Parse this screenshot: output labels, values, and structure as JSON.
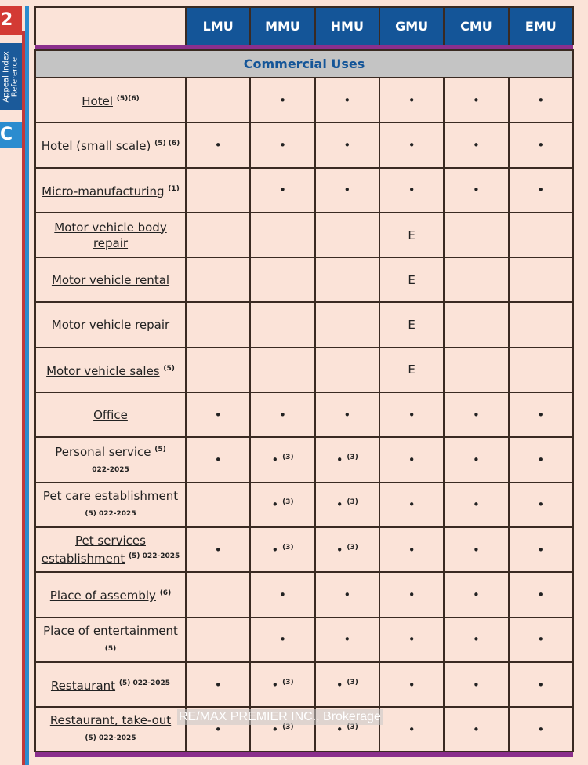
{
  "side": {
    "tab_number": "2",
    "appeal_label": "Appeal Index\nReference",
    "tab_letter": "C"
  },
  "table": {
    "columns": [
      "LMU",
      "MMU",
      "HMU",
      "GMU",
      "CMU",
      "EMU"
    ],
    "section": "Commercial Uses",
    "rows": [
      {
        "use": "Hotel",
        "note": "(5)(6)",
        "note2": "",
        "cells": [
          "",
          "•",
          "•",
          "•",
          "•",
          "•"
        ],
        "cell_notes": [
          "",
          "",
          "",
          "",
          "",
          ""
        ]
      },
      {
        "use": "Hotel (small scale)",
        "note": "(5) (6)",
        "note2": "",
        "cells": [
          "•",
          "•",
          "•",
          "•",
          "•",
          "•"
        ],
        "cell_notes": [
          "",
          "",
          "",
          "",
          "",
          ""
        ]
      },
      {
        "use": "Micro-manufacturing",
        "note": "(1)",
        "note2": "",
        "cells": [
          "",
          "•",
          "•",
          "•",
          "•",
          "•"
        ],
        "cell_notes": [
          "",
          "",
          "",
          "",
          "",
          ""
        ]
      },
      {
        "use": "Motor vehicle body repair",
        "note": "",
        "note2": "",
        "cells": [
          "",
          "",
          "",
          "E",
          "",
          ""
        ],
        "cell_notes": [
          "",
          "",
          "",
          "",
          "",
          ""
        ]
      },
      {
        "use": "Motor vehicle rental",
        "note": "",
        "note2": "",
        "cells": [
          "",
          "",
          "",
          "E",
          "",
          ""
        ],
        "cell_notes": [
          "",
          "",
          "",
          "",
          "",
          ""
        ]
      },
      {
        "use": "Motor vehicle repair",
        "note": "",
        "note2": "",
        "cells": [
          "",
          "",
          "",
          "E",
          "",
          ""
        ],
        "cell_notes": [
          "",
          "",
          "",
          "",
          "",
          ""
        ]
      },
      {
        "use": "Motor vehicle sales",
        "note": "(5)",
        "note2": "",
        "cells": [
          "",
          "",
          "",
          "E",
          "",
          ""
        ],
        "cell_notes": [
          "",
          "",
          "",
          "",
          "",
          ""
        ]
      },
      {
        "use": "Office",
        "note": "",
        "note2": "",
        "cells": [
          "•",
          "•",
          "•",
          "•",
          "•",
          "•"
        ],
        "cell_notes": [
          "",
          "",
          "",
          "",
          "",
          ""
        ]
      },
      {
        "use": "Personal service",
        "note": "(5)",
        "note2": "022-2025",
        "cells": [
          "•",
          "•",
          "•",
          "•",
          "•",
          "•"
        ],
        "cell_notes": [
          "",
          "(3)",
          "(3)",
          "",
          "",
          ""
        ]
      },
      {
        "use": "Pet care establishment",
        "note": "",
        "note2": "(5) 022-2025",
        "cells": [
          "",
          "•",
          "•",
          "•",
          "•",
          "•"
        ],
        "cell_notes": [
          "",
          "(3)",
          "(3)",
          "",
          "",
          ""
        ]
      },
      {
        "use": "Pet services establishment",
        "note": "(5) 022-2025",
        "note2": "",
        "cells": [
          "•",
          "•",
          "•",
          "•",
          "•",
          "•"
        ],
        "cell_notes": [
          "",
          "(3)",
          "(3)",
          "",
          "",
          ""
        ]
      },
      {
        "use": "Place of assembly",
        "note": "(6)",
        "note2": "",
        "cells": [
          "",
          "•",
          "•",
          "•",
          "•",
          "•"
        ],
        "cell_notes": [
          "",
          "",
          "",
          "",
          "",
          ""
        ]
      },
      {
        "use": "Place of entertainment",
        "note": "",
        "note2": "(5)",
        "cells": [
          "",
          "•",
          "•",
          "•",
          "•",
          "•"
        ],
        "cell_notes": [
          "",
          "",
          "",
          "",
          "",
          ""
        ]
      },
      {
        "use": "Restaurant",
        "note": "(5) 022-2025",
        "note2": "",
        "cells": [
          "•",
          "•",
          "•",
          "•",
          "•",
          "•"
        ],
        "cell_notes": [
          "",
          "(3)",
          "(3)",
          "",
          "",
          ""
        ]
      },
      {
        "use": "Restaurant, take-out",
        "note": "",
        "note2": "(5) 022-2025",
        "cells": [
          "•",
          "•",
          "•",
          "•",
          "•",
          "•"
        ],
        "cell_notes": [
          "",
          "(3)",
          "(3)",
          "",
          "",
          ""
        ]
      }
    ]
  },
  "watermark": "RE/MAX PREMIER INC., Brokerage",
  "colors": {
    "header": "#145598",
    "accent": "#8b2f8c",
    "section_bg": "#c4c4c4",
    "page_bg": "#fbe3d8"
  }
}
